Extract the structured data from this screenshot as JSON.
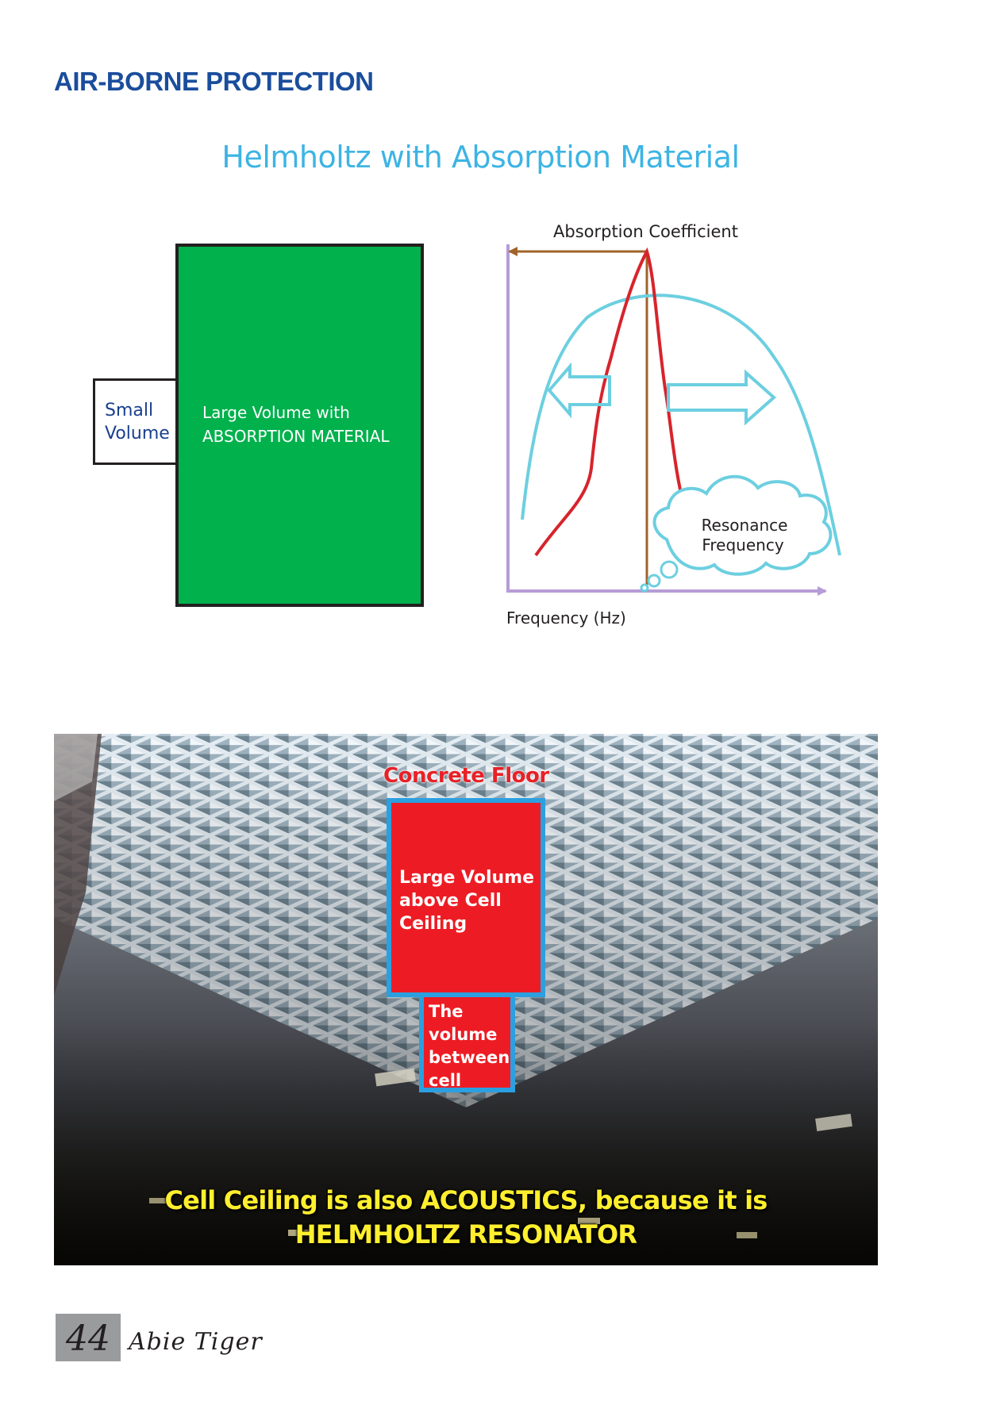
{
  "header": {
    "section_title": "AIR-BORNE PROTECTION",
    "subtitle": "Helmholtz with Absorption Material"
  },
  "schematic": {
    "small_box_label": "Small\nVolume",
    "large_box_label": "Large Volume with\nABSORPTION MATERIAL"
  },
  "graph": {
    "y_axis_label": "Absorption Coefficient",
    "x_axis_label": "Frequency (Hz)",
    "cloud_label_line1": "Resonance",
    "cloud_label_line2": "Frequency",
    "colors": {
      "axes": "#b79cd6",
      "guide": "#a0632a",
      "narrow_curve": "#d7242c",
      "wide_curve": "#6ccfe0",
      "arrows": "#6ccfe0",
      "cloud": "#6ccfe0"
    }
  },
  "photo": {
    "concrete_label": "Concrete Floor",
    "large_volume_label": "Large Volume\nabove Cell\nCeiling",
    "cell_volume_label": "The\nvolume\nbetween\ncell",
    "caption": "Cell Ceiling is also ACOUSTICS, because it is\nHELMHOLTZ RESONATOR"
  },
  "footer": {
    "page_number": "44",
    "author": "Abie Tiger"
  }
}
